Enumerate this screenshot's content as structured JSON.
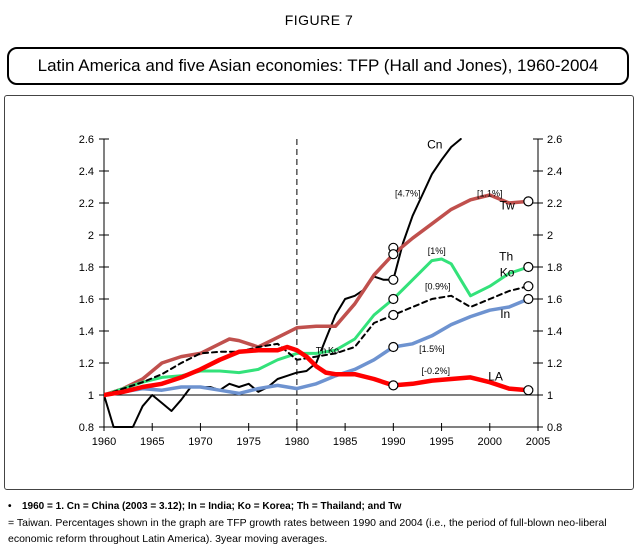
{
  "figure_label": "FIGURE 7",
  "title": "Latin America and five Asian economies: TFP (Hall and Jones), 1960-2004",
  "notes": {
    "line1": "1960 = 1. Cn = China (2003 = 3.12); In = India; Ko = Korea; Th = Thailand; and Tw",
    "line2": "= Taiwan. Percentages shown in the graph are TFP growth rates between 1990 and 2004 (i.e., the period of full-blown neo-liberal",
    "line3": "economic reform throughout Latin America). 3year moving averages."
  },
  "chart_data": {
    "type": "line",
    "title": "Latin America and five Asian economies: TFP (Hall and Jones), 1960-2004",
    "xlim": [
      1960,
      2005
    ],
    "ylim": [
      0.8,
      2.6
    ],
    "xticks": [
      1960,
      1965,
      1970,
      1975,
      1980,
      1985,
      1990,
      1995,
      2000,
      2005
    ],
    "yticks": [
      0.8,
      1,
      1.2,
      1.4,
      1.6,
      1.8,
      2,
      2.2,
      2.4,
      2.6
    ],
    "ytick_labels": [
      "0.8",
      "1",
      "1.2",
      "1.4",
      "1.6",
      "1.8",
      "2",
      "2.2",
      "2.4",
      "2.6"
    ],
    "vline_x": 1980,
    "series": [
      {
        "name": "Cn",
        "label": "Cn",
        "color": "#000000",
        "style": "solid",
        "width": 2,
        "x": [
          1960,
          1961,
          1962,
          1963,
          1964,
          1965,
          1966,
          1967,
          1968,
          1969,
          1970,
          1971,
          1972,
          1973,
          1974,
          1975,
          1976,
          1977,
          1978,
          1979,
          1980,
          1981,
          1982,
          1983,
          1984,
          1985,
          1986,
          1987,
          1988,
          1989,
          1990,
          1991,
          1992,
          1993,
          1994,
          1995,
          1996,
          1997
        ],
        "y": [
          1.0,
          0.8,
          0.8,
          0.8,
          0.93,
          1.0,
          0.95,
          0.9,
          0.97,
          1.05,
          1.05,
          1.05,
          1.03,
          1.07,
          1.05,
          1.07,
          1.02,
          1.05,
          1.1,
          1.12,
          1.14,
          1.15,
          1.2,
          1.35,
          1.5,
          1.6,
          1.62,
          1.66,
          1.74,
          1.72,
          1.72,
          1.95,
          2.12,
          2.25,
          2.38,
          2.47,
          2.55,
          2.6
        ],
        "markers": [
          [
            1990,
            1.92
          ],
          [
            1990,
            1.72
          ]
        ]
      },
      {
        "name": "Tw",
        "label": "Tw",
        "color": "#c0504d",
        "style": "solid",
        "width": 3.5,
        "x": [
          1960,
          1962,
          1964,
          1966,
          1968,
          1970,
          1972,
          1973,
          1974,
          1976,
          1978,
          1980,
          1982,
          1984,
          1986,
          1988,
          1990,
          1992,
          1994,
          1996,
          1998,
          2000,
          2002,
          2004
        ],
        "y": [
          1.0,
          1.04,
          1.1,
          1.2,
          1.24,
          1.26,
          1.32,
          1.35,
          1.34,
          1.3,
          1.36,
          1.42,
          1.43,
          1.43,
          1.57,
          1.75,
          1.88,
          1.98,
          2.07,
          2.16,
          2.22,
          2.25,
          2.2,
          2.21
        ],
        "markers": [
          [
            1990,
            1.88
          ],
          [
            2004,
            2.21
          ]
        ]
      },
      {
        "name": "Th",
        "label": "Th",
        "color": "#33e27a",
        "style": "solid",
        "width": 3,
        "x": [
          1960,
          1962,
          1964,
          1966,
          1968,
          1970,
          1972,
          1974,
          1976,
          1978,
          1980,
          1982,
          1984,
          1986,
          1988,
          1990,
          1992,
          1994,
          1995,
          1996,
          1997,
          1998,
          2000,
          2002,
          2004
        ],
        "y": [
          1.0,
          1.04,
          1.08,
          1.11,
          1.12,
          1.15,
          1.15,
          1.14,
          1.16,
          1.22,
          1.26,
          1.26,
          1.28,
          1.35,
          1.5,
          1.6,
          1.72,
          1.84,
          1.85,
          1.82,
          1.72,
          1.62,
          1.68,
          1.76,
          1.8
        ],
        "markers": [
          [
            1990,
            1.6
          ],
          [
            2004,
            1.8
          ]
        ]
      },
      {
        "name": "Ko",
        "label": "Ko",
        "color": "#000000",
        "style": "dashed",
        "width": 2,
        "x": [
          1960,
          1962,
          1964,
          1966,
          1968,
          1970,
          1972,
          1974,
          1976,
          1978,
          1980,
          1982,
          1984,
          1986,
          1988,
          1990,
          1992,
          1994,
          1996,
          1998,
          2000,
          2002,
          2004
        ],
        "y": [
          1.0,
          1.04,
          1.08,
          1.13,
          1.2,
          1.26,
          1.27,
          1.27,
          1.3,
          1.32,
          1.22,
          1.24,
          1.26,
          1.3,
          1.45,
          1.5,
          1.55,
          1.6,
          1.62,
          1.55,
          1.6,
          1.65,
          1.68
        ],
        "markers": [
          [
            1990,
            1.5
          ],
          [
            2004,
            1.68
          ]
        ]
      },
      {
        "name": "In",
        "label": "In",
        "color": "#6e93d0",
        "style": "solid",
        "width": 3.5,
        "x": [
          1960,
          1962,
          1964,
          1966,
          1968,
          1970,
          1972,
          1974,
          1976,
          1978,
          1980,
          1982,
          1984,
          1986,
          1988,
          1990,
          1992,
          1994,
          1996,
          1998,
          2000,
          2002,
          2004
        ],
        "y": [
          1.0,
          1.02,
          1.04,
          1.03,
          1.05,
          1.05,
          1.03,
          1.01,
          1.04,
          1.06,
          1.04,
          1.07,
          1.12,
          1.16,
          1.22,
          1.3,
          1.32,
          1.37,
          1.44,
          1.49,
          1.53,
          1.55,
          1.6
        ],
        "markers": [
          [
            1990,
            1.3
          ],
          [
            2004,
            1.6
          ]
        ]
      },
      {
        "name": "LA",
        "label": "LA",
        "color": "#ff0000",
        "style": "solid",
        "width": 4.5,
        "x": [
          1960,
          1962,
          1964,
          1966,
          1968,
          1970,
          1972,
          1974,
          1976,
          1978,
          1979,
          1980,
          1981,
          1982,
          1983,
          1984,
          1986,
          1988,
          1990,
          1992,
          1994,
          1996,
          1998,
          2000,
          2002,
          2004
        ],
        "y": [
          1.0,
          1.02,
          1.05,
          1.07,
          1.11,
          1.16,
          1.22,
          1.27,
          1.28,
          1.28,
          1.3,
          1.28,
          1.24,
          1.18,
          1.14,
          1.13,
          1.13,
          1.1,
          1.06,
          1.07,
          1.09,
          1.1,
          1.11,
          1.08,
          1.04,
          1.03
        ],
        "markers": [
          [
            1990,
            1.06
          ],
          [
            2004,
            1.03
          ]
        ]
      }
    ],
    "annotations": [
      {
        "text": "[4.7%]",
        "x": 1991.5,
        "y": 2.24
      },
      {
        "text": "[1.1%]",
        "x": 2000,
        "y": 2.24
      },
      {
        "text": "Tw",
        "x": 2001.8,
        "y": 2.16,
        "size": 12
      },
      {
        "text": "Cn",
        "x": 1994.3,
        "y": 2.54,
        "size": 12
      },
      {
        "text": "[1%]",
        "x": 1994.5,
        "y": 1.88
      },
      {
        "text": "Th",
        "x": 2001.7,
        "y": 1.84,
        "size": 12
      },
      {
        "text": "Ko",
        "x": 2001.8,
        "y": 1.74,
        "size": 12
      },
      {
        "text": "[0.9%]",
        "x": 1994.6,
        "y": 1.66
      },
      {
        "text": "In",
        "x": 2001.6,
        "y": 1.48,
        "size": 12
      },
      {
        "text": "[1.5%]",
        "x": 1994,
        "y": 1.27
      },
      {
        "text": "[-0.2%]",
        "x": 1994.4,
        "y": 1.13
      },
      {
        "text": "LA",
        "x": 2000.6,
        "y": 1.09,
        "size": 12
      },
      {
        "text": "Th",
        "x": 1982.5,
        "y": 1.26
      },
      {
        "text": "Ko",
        "x": 1983.8,
        "y": 1.26
      }
    ]
  }
}
